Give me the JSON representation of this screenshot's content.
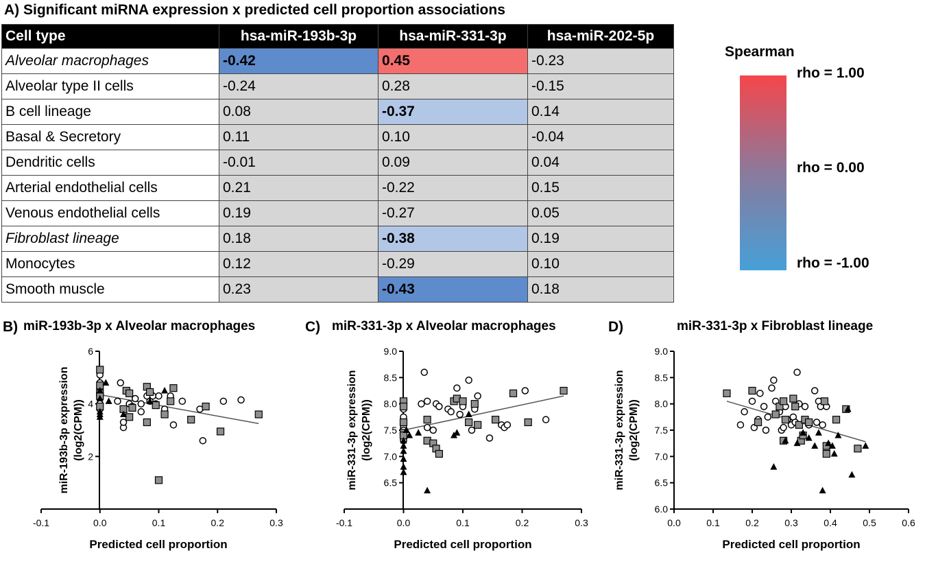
{
  "panel_a": {
    "title": "A)   Significant miRNA expression x predicted cell proportion associations",
    "headers": [
      "Cell type",
      "hsa-miR-193b-3p",
      "hsa-miR-331-3p",
      "hsa-miR-202-5p"
    ],
    "rows": [
      {
        "label": "Alveolar macrophages",
        "italic": true,
        "values": [
          "-0.42",
          "0.45",
          "-0.23"
        ],
        "highlight": [
          "neg",
          "pos",
          ""
        ]
      },
      {
        "label": "Alveolar type II cells",
        "italic": false,
        "values": [
          "-0.24",
          "0.28",
          "-0.15"
        ],
        "highlight": [
          "",
          "",
          ""
        ]
      },
      {
        "label": "B cell lineage",
        "italic": false,
        "values": [
          "0.08",
          "-0.37",
          "0.14"
        ],
        "highlight": [
          "",
          "lneg",
          ""
        ]
      },
      {
        "label": "Basal & Secretory",
        "italic": false,
        "values": [
          "0.11",
          "0.10",
          "-0.04"
        ],
        "highlight": [
          "",
          "",
          ""
        ]
      },
      {
        "label": "Dendritic cells",
        "italic": false,
        "values": [
          "-0.01",
          "0.09",
          "0.04"
        ],
        "highlight": [
          "",
          "",
          ""
        ]
      },
      {
        "label": "Arterial endothelial cells",
        "italic": false,
        "values": [
          "0.21",
          "-0.22",
          "0.15"
        ],
        "highlight": [
          "",
          "",
          ""
        ]
      },
      {
        "label": "Venous endothelial cells",
        "italic": false,
        "values": [
          "0.19",
          "-0.27",
          "0.05"
        ],
        "highlight": [
          "",
          "",
          ""
        ]
      },
      {
        "label": "Fibroblast lineage",
        "italic": true,
        "values": [
          "0.18",
          "-0.38",
          "0.19"
        ],
        "highlight": [
          "",
          "lneg",
          ""
        ]
      },
      {
        "label": "Monocytes",
        "italic": false,
        "values": [
          "0.12",
          "-0.29",
          "0.10"
        ],
        "highlight": [
          "",
          "",
          ""
        ]
      },
      {
        "label": "Smooth muscle",
        "italic": false,
        "values": [
          "0.23",
          "-0.43",
          "0.18"
        ],
        "highlight": [
          "",
          "neg",
          ""
        ]
      }
    ],
    "highlight_colors": {
      "pos": "#f56e6e",
      "neg": "#5e8bcb",
      "lneg": "#b2c6e6",
      "none": "#d6d6d6"
    }
  },
  "legend": {
    "title": "Spearman",
    "top": "rho = 1.00",
    "mid": "rho = 0.00",
    "bottom": "rho = -1.00",
    "gradient": [
      "#f5464b",
      "#8a7a9c",
      "#46a0d8"
    ]
  },
  "chart_data": [
    {
      "type": "scatter",
      "panel": "B)",
      "title": "miR-193b-3p x Alveolar macrophages",
      "xlabel": "Predicted cell proportion",
      "ylabel": [
        "miR-193b-3p expression",
        "(log2(CPM))"
      ],
      "xlim": [
        -0.1,
        0.3
      ],
      "ylim": [
        0,
        6
      ],
      "xticks": [
        "-0.1",
        "0.0",
        "0.1",
        "0.2",
        "0.3"
      ],
      "yticks": [
        "2",
        "4",
        "6"
      ],
      "marker_series": [
        {
          "marker": "circle",
          "points": [
            [
              0.0,
              5.1
            ],
            [
              0.0,
              4.8
            ],
            [
              0.0,
              4.5
            ],
            [
              0.0,
              4.2
            ],
            [
              0.0,
              3.9
            ],
            [
              0.0,
              4.0
            ],
            [
              0.0,
              5.3
            ],
            [
              0.0,
              3.8
            ],
            [
              0.0,
              4.3
            ],
            [
              0.0,
              4.6
            ],
            [
              0.03,
              4.1
            ],
            [
              0.035,
              4.8
            ],
            [
              0.04,
              3.1
            ],
            [
              0.04,
              3.3
            ],
            [
              0.05,
              4.0
            ],
            [
              0.055,
              3.9
            ],
            [
              0.06,
              4.2
            ],
            [
              0.07,
              4.0
            ],
            [
              0.07,
              3.7
            ],
            [
              0.08,
              4.3
            ],
            [
              0.085,
              4.1
            ],
            [
              0.09,
              4.3
            ],
            [
              0.095,
              4.0
            ],
            [
              0.1,
              4.3
            ],
            [
              0.11,
              3.8
            ],
            [
              0.12,
              4.3
            ],
            [
              0.125,
              3.2
            ],
            [
              0.14,
              4.1
            ],
            [
              0.17,
              3.8
            ],
            [
              0.175,
              2.6
            ],
            [
              0.21,
              4.1
            ],
            [
              0.24,
              4.15
            ]
          ]
        },
        {
          "marker": "square",
          "points": [
            [
              0.0,
              5.3
            ],
            [
              0.0,
              4.7
            ],
            [
              0.0,
              4.4
            ],
            [
              0.0,
              4.3
            ],
            [
              0.0,
              3.9
            ],
            [
              0.04,
              3.8
            ],
            [
              0.045,
              4.5
            ],
            [
              0.05,
              4.4
            ],
            [
              0.05,
              3.5
            ],
            [
              0.055,
              3.85
            ],
            [
              0.08,
              4.65
            ],
            [
              0.08,
              3.3
            ],
            [
              0.085,
              4.45
            ],
            [
              0.095,
              3.95
            ],
            [
              0.1,
              1.1
            ],
            [
              0.11,
              3.6
            ],
            [
              0.12,
              4.1
            ],
            [
              0.125,
              4.6
            ],
            [
              0.155,
              3.4
            ],
            [
              0.18,
              3.9
            ],
            [
              0.205,
              2.95
            ],
            [
              0.27,
              3.6
            ]
          ]
        },
        {
          "marker": "triangle",
          "points": [
            [
              0.0,
              4.2
            ],
            [
              0.0,
              3.7
            ],
            [
              0.0,
              3.5
            ],
            [
              0.0,
              4.5
            ],
            [
              0.0,
              3.6
            ],
            [
              0.01,
              4.8
            ],
            [
              0.015,
              4.1
            ],
            [
              0.04,
              3.6
            ],
            [
              0.085,
              4.1
            ],
            [
              0.11,
              4.5
            ]
          ]
        }
      ],
      "trend_line": [
        [
          0.0,
          4.35
        ],
        [
          0.27,
          3.25
        ]
      ]
    },
    {
      "type": "scatter",
      "panel": "C)",
      "title": "miR-331-3p x Alveolar macrophages",
      "xlabel": "Predicted cell proportion",
      "ylabel": [
        "miR-331-3p expression",
        "(log2(CPM))"
      ],
      "xlim": [
        -0.1,
        0.3
      ],
      "ylim": [
        6.0,
        9.0
      ],
      "xticks": [
        "-0.1",
        "0.0",
        "0.1",
        "0.2",
        "0.3"
      ],
      "yticks": [
        "6.5",
        "7.0",
        "7.5",
        "8.0",
        "8.5",
        "9.0"
      ],
      "marker_series": [
        {
          "marker": "circle",
          "points": [
            [
              0.0,
              7.4
            ],
            [
              0.0,
              7.3
            ],
            [
              0.0,
              7.55
            ],
            [
              0.0,
              7.75
            ],
            [
              0.0,
              7.9
            ],
            [
              0.0,
              7.5
            ],
            [
              0.035,
              8.6
            ],
            [
              0.03,
              8.0
            ],
            [
              0.04,
              8.05
            ],
            [
              0.04,
              7.55
            ],
            [
              0.05,
              7.5
            ],
            [
              0.055,
              8.0
            ],
            [
              0.06,
              7.95
            ],
            [
              0.075,
              7.9
            ],
            [
              0.08,
              7.85
            ],
            [
              0.09,
              8.3
            ],
            [
              0.095,
              7.8
            ],
            [
              0.1,
              7.95
            ],
            [
              0.11,
              8.45
            ],
            [
              0.115,
              7.5
            ],
            [
              0.12,
              7.9
            ],
            [
              0.125,
              8.15
            ],
            [
              0.145,
              7.35
            ],
            [
              0.165,
              7.6
            ],
            [
              0.17,
              7.55
            ],
            [
              0.175,
              7.6
            ],
            [
              0.205,
              8.25
            ],
            [
              0.24,
              7.7
            ]
          ]
        },
        {
          "marker": "square",
          "points": [
            [
              0.0,
              8.05
            ],
            [
              0.0,
              7.95
            ],
            [
              0.0,
              7.65
            ],
            [
              0.0,
              7.45
            ],
            [
              0.0,
              7.4
            ],
            [
              0.04,
              7.7
            ],
            [
              0.04,
              7.3
            ],
            [
              0.05,
              7.25
            ],
            [
              0.055,
              7.15
            ],
            [
              0.06,
              7.05
            ],
            [
              0.085,
              8.05
            ],
            [
              0.09,
              8.1
            ],
            [
              0.1,
              8.05
            ],
            [
              0.11,
              7.65
            ],
            [
              0.12,
              8.0
            ],
            [
              0.125,
              7.6
            ],
            [
              0.155,
              7.7
            ],
            [
              0.185,
              8.2
            ],
            [
              0.21,
              7.65
            ],
            [
              0.27,
              8.25
            ]
          ]
        },
        {
          "marker": "triangle",
          "points": [
            [
              0.0,
              7.1
            ],
            [
              0.0,
              6.95
            ],
            [
              0.0,
              6.7
            ],
            [
              0.0,
              6.8
            ],
            [
              0.0,
              7.2
            ],
            [
              0.0,
              7.3
            ],
            [
              0.005,
              7.5
            ],
            [
              0.01,
              7.4
            ],
            [
              0.025,
              7.45
            ],
            [
              0.04,
              6.35
            ],
            [
              0.085,
              7.4
            ],
            [
              0.09,
              7.45
            ],
            [
              0.11,
              7.8
            ]
          ]
        }
      ],
      "trend_line": [
        [
          0.0,
          7.5
        ],
        [
          0.27,
          8.15
        ]
      ]
    },
    {
      "type": "scatter",
      "panel": "D)",
      "title": "miR-331-3p x Fibroblast lineage",
      "xlabel": "Predicted cell proportion",
      "ylabel": [
        "miR-331-3p expression",
        "(log2(CPM))"
      ],
      "xlim": [
        0.0,
        0.6
      ],
      "ylim": [
        6.0,
        9.0
      ],
      "xticks": [
        "0.0",
        "0.1",
        "0.2",
        "0.3",
        "0.4",
        "0.5",
        "0.6"
      ],
      "yticks": [
        "6.0",
        "6.5",
        "7.0",
        "7.5",
        "8.0",
        "8.5",
        "9.0"
      ],
      "marker_series": [
        {
          "marker": "circle",
          "points": [
            [
              0.17,
              7.6
            ],
            [
              0.18,
              7.85
            ],
            [
              0.2,
              8.05
            ],
            [
              0.205,
              7.55
            ],
            [
              0.215,
              7.7
            ],
            [
              0.22,
              8.2
            ],
            [
              0.23,
              7.95
            ],
            [
              0.235,
              7.5
            ],
            [
              0.24,
              7.75
            ],
            [
              0.25,
              8.3
            ],
            [
              0.255,
              8.45
            ],
            [
              0.26,
              8.05
            ],
            [
              0.27,
              7.85
            ],
            [
              0.275,
              7.5
            ],
            [
              0.28,
              7.55
            ],
            [
              0.285,
              7.95
            ],
            [
              0.29,
              7.7
            ],
            [
              0.3,
              7.6
            ],
            [
              0.305,
              7.75
            ],
            [
              0.31,
              7.65
            ],
            [
              0.315,
              8.6
            ],
            [
              0.32,
              8.0
            ],
            [
              0.33,
              7.4
            ],
            [
              0.335,
              7.95
            ],
            [
              0.345,
              7.6
            ],
            [
              0.36,
              8.25
            ],
            [
              0.365,
              7.65
            ],
            [
              0.37,
              8.05
            ],
            [
              0.375,
              7.95
            ],
            [
              0.38,
              7.6
            ],
            [
              0.39,
              7.95
            ]
          ]
        },
        {
          "marker": "square",
          "points": [
            [
              0.135,
              8.2
            ],
            [
              0.2,
              8.25
            ],
            [
              0.215,
              7.65
            ],
            [
              0.26,
              7.8
            ],
            [
              0.27,
              7.95
            ],
            [
              0.28,
              8.05
            ],
            [
              0.28,
              7.3
            ],
            [
              0.285,
              7.7
            ],
            [
              0.305,
              8.1
            ],
            [
              0.31,
              7.95
            ],
            [
              0.32,
              7.6
            ],
            [
              0.325,
              7.3
            ],
            [
              0.33,
              7.4
            ],
            [
              0.335,
              7.7
            ],
            [
              0.345,
              7.65
            ],
            [
              0.385,
              8.05
            ],
            [
              0.39,
              7.2
            ],
            [
              0.39,
              7.05
            ],
            [
              0.415,
              7.7
            ],
            [
              0.44,
              7.9
            ],
            [
              0.47,
              7.15
            ]
          ]
        },
        {
          "marker": "triangle",
          "points": [
            [
              0.255,
              6.8
            ],
            [
              0.285,
              7.3
            ],
            [
              0.315,
              7.25
            ],
            [
              0.33,
              7.45
            ],
            [
              0.345,
              7.35
            ],
            [
              0.36,
              7.2
            ],
            [
              0.37,
              7.45
            ],
            [
              0.38,
              6.35
            ],
            [
              0.395,
              7.25
            ],
            [
              0.405,
              7.2
            ],
            [
              0.41,
              7.05
            ],
            [
              0.42,
              7.4
            ],
            [
              0.445,
              7.9
            ],
            [
              0.455,
              6.65
            ],
            [
              0.49,
              7.2
            ]
          ]
        }
      ],
      "trend_line": [
        [
          0.135,
          8.05
        ],
        [
          0.49,
          7.28
        ]
      ]
    }
  ]
}
